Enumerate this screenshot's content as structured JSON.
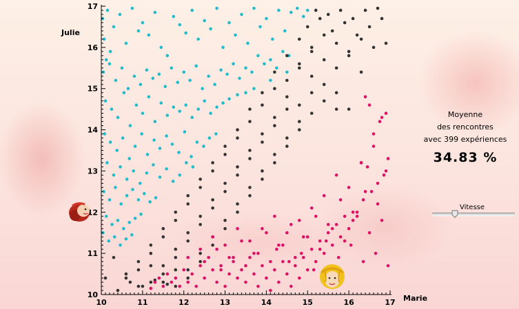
{
  "axes": {
    "x_label": "Marie",
    "y_label": "Julie"
  },
  "stats": {
    "line1": "Moyenne",
    "line2": "des rencontres",
    "line3": "avec 399 expériences",
    "value": "34.83 %"
  },
  "speed": {
    "label": "Vitesse",
    "level": 0.25
  },
  "markers": {
    "marie_value": 15.6,
    "julie_value": 12.0
  },
  "chart_data": {
    "type": "scatter",
    "xlabel": "Marie",
    "ylabel": "Julie",
    "xlim": [
      10,
      17
    ],
    "ylim": [
      10,
      17
    ],
    "x_ticks": [
      "10",
      "11",
      "12",
      "13",
      "14",
      "15",
      "16",
      "17"
    ],
    "y_ticks": [
      "10",
      "11",
      "12",
      "13",
      "14",
      "15",
      "16",
      "17"
    ],
    "grid": false,
    "colors": {
      "julie_first_far": "#22bccc",
      "meet": "#333333",
      "marie_first_far": "#dd1166"
    },
    "series": [
      {
        "values_x": [
          10.03,
          10.07,
          10.12,
          10.15,
          10.22,
          10.3,
          10.45,
          10.6,
          10.75,
          10.9,
          11.0,
          11.15,
          11.3,
          11.45,
          11.6,
          11.75,
          11.9,
          12.05,
          12.2,
          12.35,
          12.5,
          12.65,
          12.8,
          12.95,
          13.1,
          13.25,
          13.4,
          13.55,
          13.7,
          13.85,
          14.0,
          14.15,
          14.3,
          14.45,
          14.6,
          14.75,
          14.9,
          15.0,
          10.05,
          10.2,
          10.35,
          10.5,
          10.65,
          10.8,
          10.95,
          11.1,
          11.25,
          11.4,
          11.55,
          11.7,
          11.85,
          12.0,
          12.15,
          12.3,
          12.45,
          12.6,
          12.75,
          12.9,
          13.05,
          13.2,
          13.35,
          13.5,
          13.65,
          13.8,
          13.95,
          14.1,
          14.25,
          14.4,
          14.55,
          10.1,
          10.25,
          10.4,
          10.55,
          10.7,
          10.85,
          11.0,
          11.15,
          11.3,
          11.45,
          11.6,
          11.75,
          11.9,
          12.05,
          12.2,
          12.35,
          12.5,
          12.65,
          12.8,
          12.95,
          13.1,
          13.3,
          13.5,
          13.7,
          14.1,
          14.5,
          10.08,
          10.22,
          10.38,
          10.52,
          10.68,
          10.82,
          10.98,
          11.12,
          11.28,
          11.42,
          11.58,
          11.72,
          11.88,
          12.02,
          12.18,
          12.32,
          12.48,
          12.62,
          12.78,
          10.14,
          10.3,
          10.46,
          10.62,
          10.78,
          10.94,
          11.1,
          11.26,
          11.42,
          11.58,
          11.74,
          11.9,
          12.06,
          12.22,
          10.06,
          10.2,
          10.34,
          10.48,
          10.62,
          10.76,
          10.9,
          11.04,
          11.18,
          11.32,
          10.12,
          10.26,
          10.4,
          10.54,
          10.68,
          10.82,
          10.96,
          10.04,
          10.18,
          10.32,
          10.46,
          10.6,
          10.74
        ],
        "values_y": [
          16.7,
          16.2,
          15.7,
          16.9,
          15.9,
          16.5,
          16.8,
          16.1,
          16.95,
          16.4,
          16.6,
          16.3,
          16.85,
          16.0,
          15.8,
          16.75,
          16.55,
          16.35,
          16.9,
          16.2,
          16.65,
          16.45,
          16.95,
          16.0,
          16.6,
          16.3,
          16.8,
          16.1,
          16.95,
          16.5,
          16.7,
          16.2,
          16.9,
          16.4,
          16.85,
          16.95,
          16.75,
          16.9,
          15.4,
          15.6,
          15.2,
          15.5,
          15.0,
          15.3,
          15.1,
          15.45,
          15.25,
          15.35,
          15.05,
          15.5,
          15.15,
          15.4,
          15.2,
          15.55,
          15.0,
          15.3,
          15.1,
          15.45,
          15.35,
          15.6,
          15.25,
          15.5,
          15.4,
          15.8,
          15.6,
          15.7,
          15.5,
          15.9,
          15.8,
          14.7,
          14.5,
          14.3,
          14.9,
          14.1,
          14.6,
          14.4,
          14.8,
          14.2,
          14.65,
          14.35,
          14.55,
          14.45,
          14.6,
          14.3,
          14.5,
          14.7,
          14.4,
          14.55,
          14.65,
          14.75,
          14.85,
          14.9,
          15.0,
          15.2,
          15.4,
          13.9,
          13.7,
          13.5,
          13.8,
          13.3,
          13.6,
          13.9,
          13.4,
          13.75,
          13.55,
          13.85,
          13.65,
          13.45,
          13.95,
          13.35,
          13.7,
          13.6,
          13.8,
          13.9,
          13.2,
          12.9,
          13.1,
          12.8,
          13.0,
          12.7,
          12.95,
          13.15,
          12.85,
          13.05,
          12.75,
          12.9,
          13.2,
          13.1,
          12.5,
          12.3,
          12.6,
          12.2,
          12.4,
          12.55,
          12.3,
          12.45,
          12.25,
          12.35,
          11.9,
          11.7,
          11.8,
          11.6,
          11.75,
          11.85,
          11.95,
          11.5,
          11.3,
          11.4,
          11.2,
          11.35,
          11.45
        ],
        "name": ""
      },
      {
        "values_x": [
          15.2,
          15.5,
          15.8,
          16.1,
          16.4,
          16.7,
          16.9,
          15.0,
          15.3,
          15.6,
          15.9,
          16.2,
          16.5,
          16.8,
          14.8,
          15.1,
          15.4,
          15.7,
          16.0,
          16.3,
          16.6,
          14.5,
          14.8,
          15.1,
          15.4,
          15.7,
          16.0,
          16.3,
          14.2,
          14.5,
          14.8,
          15.1,
          15.4,
          15.7,
          16.0,
          13.9,
          14.2,
          14.5,
          14.8,
          15.1,
          15.4,
          15.7,
          13.6,
          13.9,
          14.2,
          14.5,
          14.8,
          15.1,
          13.3,
          13.6,
          13.9,
          14.2,
          14.5,
          14.8,
          13.0,
          13.3,
          13.6,
          13.9,
          14.2,
          14.5,
          12.7,
          13.0,
          13.3,
          13.6,
          13.9,
          14.2,
          12.4,
          12.7,
          13.0,
          13.3,
          13.6,
          13.9,
          12.1,
          12.4,
          12.7,
          13.0,
          13.3,
          13.6,
          11.8,
          12.1,
          12.4,
          12.7,
          13.0,
          13.3,
          11.5,
          11.8,
          12.1,
          12.4,
          12.7,
          13.0,
          11.2,
          11.5,
          11.8,
          12.1,
          12.4,
          12.7,
          10.9,
          11.2,
          11.5,
          11.8,
          12.1,
          12.4,
          10.6,
          10.9,
          11.2,
          11.5,
          11.8,
          12.1,
          10.3,
          10.6,
          10.9,
          11.2,
          11.5,
          11.8,
          10.1,
          10.4,
          10.7,
          11.0,
          11.3,
          11.6
        ],
        "values_y": [
          16.9,
          16.8,
          16.9,
          16.7,
          16.9,
          16.95,
          16.1,
          16.5,
          16.7,
          16.4,
          16.6,
          16.3,
          16.5,
          16.7,
          16.2,
          16.0,
          16.3,
          16.1,
          15.9,
          16.2,
          16.0,
          15.8,
          15.6,
          15.9,
          15.7,
          15.5,
          15.8,
          15.4,
          15.4,
          15.2,
          15.5,
          15.3,
          15.1,
          14.9,
          14.5,
          14.9,
          15.0,
          14.8,
          14.6,
          14.9,
          14.7,
          14.5,
          14.5,
          14.6,
          14.3,
          14.5,
          14.2,
          14.4,
          14.0,
          14.2,
          13.9,
          14.1,
          13.8,
          14.0,
          13.6,
          13.8,
          13.5,
          13.7,
          13.4,
          13.6,
          13.2,
          13.4,
          13.1,
          13.3,
          13.0,
          13.2,
          12.8,
          13.0,
          12.7,
          12.9,
          12.6,
          12.8,
          12.4,
          12.6,
          12.3,
          12.5,
          12.2,
          12.4,
          12.0,
          12.2,
          11.9,
          12.1,
          11.8,
          12.0,
          11.6,
          11.8,
          11.5,
          11.7,
          11.4,
          11.6,
          11.2,
          11.4,
          11.1,
          11.3,
          11.0,
          11.2,
          10.8,
          11.0,
          10.7,
          10.9,
          10.6,
          10.8,
          10.4,
          10.6,
          10.3,
          10.5,
          10.2,
          10.4,
          10.9,
          10.5,
          10.2,
          10.7,
          10.3,
          10.6,
          10.4,
          10.1,
          10.3,
          10.2,
          10.35,
          10.25
        ],
        "name": ""
      },
      {
        "values_x": [
          16.9,
          16.8,
          16.75,
          16.6,
          16.5,
          16.4,
          16.3,
          16.95,
          16.85,
          16.7,
          16.55,
          16.45,
          16.35,
          16.2,
          16.1,
          16.0,
          15.9,
          15.8,
          15.7,
          15.6,
          15.5,
          15.4,
          15.3,
          15.2,
          15.1,
          15.0,
          14.9,
          14.8,
          14.7,
          14.6,
          14.5,
          14.4,
          14.3,
          14.2,
          14.1,
          14.0,
          13.9,
          13.8,
          13.7,
          13.6,
          13.5,
          13.4,
          13.3,
          13.2,
          13.1,
          13.0,
          12.9,
          12.8,
          12.7,
          12.6,
          12.5,
          12.4,
          12.3,
          12.2,
          12.1,
          12.0,
          11.9,
          11.8,
          11.7,
          11.6,
          11.5,
          11.4,
          11.3,
          11.2,
          16.9,
          16.6,
          16.3,
          16.0,
          15.7,
          15.4,
          15.1,
          14.8,
          14.5,
          14.2,
          13.9,
          13.6,
          13.3,
          13.0,
          12.7,
          12.4,
          12.1,
          16.7,
          16.4,
          16.1,
          15.8,
          15.5,
          15.2,
          14.9,
          14.6,
          14.3,
          14.0,
          13.7,
          13.4,
          13.1,
          12.8,
          12.5,
          16.8,
          16.5,
          16.2,
          15.9,
          15.6,
          15.3,
          15.0,
          14.7,
          14.4,
          14.1,
          13.8,
          13.5,
          13.2,
          12.9,
          16.95,
          16.65,
          16.35,
          16.05,
          15.75,
          15.45,
          15.15,
          14.85,
          14.55,
          14.25
        ],
        "values_y": [
          14.4,
          14.3,
          14.2,
          13.9,
          14.6,
          14.8,
          13.2,
          13.3,
          12.9,
          12.7,
          12.5,
          13.1,
          12.3,
          12.0,
          11.8,
          11.6,
          11.9,
          11.4,
          11.7,
          11.2,
          11.5,
          11.0,
          11.3,
          10.8,
          11.1,
          10.6,
          10.9,
          10.4,
          10.7,
          10.2,
          10.5,
          10.8,
          10.3,
          10.6,
          10.1,
          10.4,
          10.7,
          10.2,
          10.5,
          10.9,
          10.3,
          10.6,
          10.4,
          10.8,
          10.5,
          10.2,
          10.7,
          10.3,
          10.6,
          10.9,
          10.4,
          10.7,
          10.2,
          10.5,
          10.3,
          10.6,
          10.2,
          10.4,
          10.3,
          10.5,
          10.2,
          10.4,
          10.3,
          10.15,
          13.0,
          13.6,
          13.2,
          12.6,
          12.9,
          12.4,
          12.1,
          11.8,
          11.5,
          11.9,
          11.6,
          11.3,
          11.6,
          11.2,
          11.4,
          11.1,
          10.9,
          12.2,
          12.5,
          12.0,
          12.3,
          11.7,
          11.9,
          11.4,
          11.7,
          11.2,
          11.5,
          11.0,
          11.3,
          10.9,
          11.1,
          10.8,
          11.8,
          11.5,
          11.9,
          11.3,
          11.6,
          11.1,
          11.4,
          10.9,
          11.2,
          10.8,
          11.0,
          10.7,
          10.9,
          10.6,
          10.7,
          11.0,
          10.8,
          11.2,
          10.9,
          11.3,
          10.6,
          11.0,
          10.8,
          11.1
        ],
        "name": ""
      }
    ]
  }
}
